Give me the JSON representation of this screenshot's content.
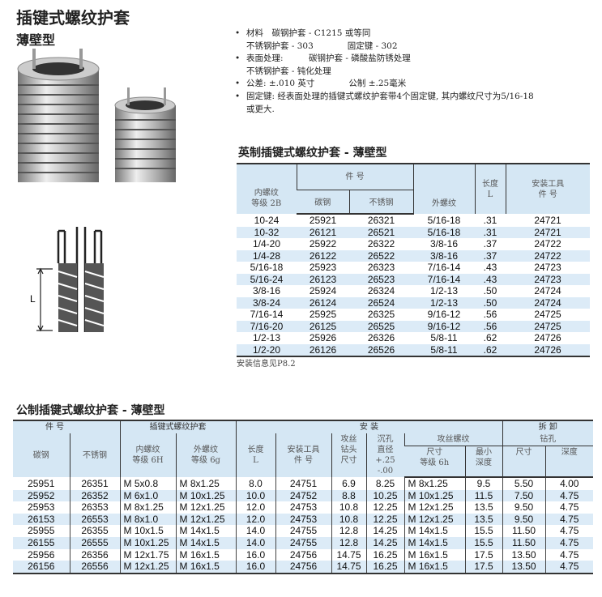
{
  "title": "插键式螺纹护套",
  "subtitle": "薄壁型",
  "bullets": [
    {
      "line1": "材料　碳钢护套 - C1215 或等同",
      "line2": "不锈钢护套 - 303　　　　固定键 - 302"
    },
    {
      "line1": "表面处理:　　　碳钢护套 - 磷酸盐防锈处理",
      "line2": "不锈钢护套 - 钝化处理"
    },
    {
      "line1": "公差: ±.010 英寸　　　　公制 ±.25毫米",
      "line2": ""
    },
    {
      "line1": "固定键: 经表面处理的插键式螺纹护套带4个固定键, 其内螺纹尺寸为5/16-18",
      "line2": "或更大."
    }
  ],
  "diagram": {
    "dimension_label": "L"
  },
  "imperial": {
    "title": "英制插键式螺纹护套 - 薄壁型",
    "headers": {
      "internal": "内螺纹\n等级 2B",
      "part_no": "件 号",
      "carbon": "碳钢",
      "stainless": "不锈钢",
      "external": "外螺纹",
      "length": "长度\nL",
      "tool": "安装工具\n件 号"
    },
    "rows": [
      [
        "10-24",
        "25921",
        "26321",
        "5/16-18",
        ".31",
        "24721"
      ],
      [
        "10-32",
        "26121",
        "26521",
        "5/16-18",
        ".31",
        "24721"
      ],
      [
        "1/4-20",
        "25922",
        "26322",
        "3/8-16",
        ".37",
        "24722"
      ],
      [
        "1/4-28",
        "26122",
        "26522",
        "3/8-16",
        ".37",
        "24722"
      ],
      [
        "5/16-18",
        "25923",
        "26323",
        "7/16-14",
        ".43",
        "24723"
      ],
      [
        "5/16-24",
        "26123",
        "26523",
        "7/16-14",
        ".43",
        "24723"
      ],
      [
        "3/8-16",
        "25924",
        "26324",
        "1/2-13",
        ".50",
        "24724"
      ],
      [
        "3/8-24",
        "26124",
        "26524",
        "1/2-13",
        ".50",
        "24724"
      ],
      [
        "7/16-14",
        "25925",
        "26325",
        "9/16-12",
        ".56",
        "24725"
      ],
      [
        "7/16-20",
        "26125",
        "26525",
        "9/16-12",
        ".56",
        "24725"
      ],
      [
        "1/2-13",
        "25926",
        "26326",
        "5/8-11",
        ".62",
        "24726"
      ],
      [
        "1/2-20",
        "26126",
        "26526",
        "5/8-11",
        ".62",
        "24726"
      ]
    ],
    "note": "安装信息见P8.2"
  },
  "metric": {
    "title": "公制插键式螺纹护套 - 薄壁型",
    "groups": {
      "part_no": "件 号",
      "insert": "插键式螺纹护套",
      "install": "安 装",
      "removal": "拆 卸"
    },
    "sub": {
      "tap_thread": "攻丝螺纹",
      "drill": "钻孔"
    },
    "headers": {
      "carbon": "碳钢",
      "stainless": "不锈钢",
      "internal": "内螺纹\n等级 6H",
      "external": "外螺纹\n等级 6g",
      "length": "长度\nL",
      "tool": "安装工具\n件 号",
      "tap_drill": "攻丝\n钻头\n尺寸",
      "csink": "沉孔\n直径\n+.25\n-.00",
      "tap_size": "尺寸\n等级 6h",
      "min_depth": "最小\n深度",
      "drill_size": "尺寸",
      "drill_depth": "深度"
    },
    "rows": [
      [
        "25951",
        "26351",
        "M 5x0.8",
        "M 8x1.25",
        "8.0",
        "24751",
        "6.9",
        "8.25",
        "M 8x1.25",
        "9.5",
        "5.50",
        "4.00"
      ],
      [
        "25952",
        "26352",
        "M 6x1.0",
        "M 10x1.25",
        "10.0",
        "24752",
        "8.8",
        "10.25",
        "M 10x1.25",
        "11.5",
        "7.50",
        "4.75"
      ],
      [
        "25953",
        "26353",
        "M 8x1.25",
        "M 12x1.25",
        "12.0",
        "24753",
        "10.8",
        "12.25",
        "M 12x1.25",
        "13.5",
        "9.50",
        "4.75"
      ],
      [
        "26153",
        "26553",
        "M 8x1.0",
        "M 12x1.25",
        "12.0",
        "24753",
        "10.8",
        "12.25",
        "M 12x1.25",
        "13.5",
        "9.50",
        "4.75"
      ],
      [
        "25955",
        "26355",
        "M 10x1.5",
        "M 14x1.5",
        "14.0",
        "24755",
        "12.8",
        "14.25",
        "M 14x1.5",
        "15.5",
        "11.50",
        "4.75"
      ],
      [
        "26155",
        "26555",
        "M 10x1.25",
        "M 14x1.5",
        "14.0",
        "24755",
        "12.8",
        "14.25",
        "M 14x1.5",
        "15.5",
        "11.50",
        "4.75"
      ],
      [
        "25956",
        "26356",
        "M 12x1.75",
        "M 16x1.5",
        "16.0",
        "24756",
        "14.75",
        "16.25",
        "M 16x1.5",
        "17.5",
        "13.50",
        "4.75"
      ],
      [
        "26156",
        "26556",
        "M 12x1.25",
        "M 16x1.5",
        "16.0",
        "24756",
        "14.75",
        "16.25",
        "M 16x1.5",
        "17.5",
        "13.50",
        "4.75"
      ]
    ]
  }
}
